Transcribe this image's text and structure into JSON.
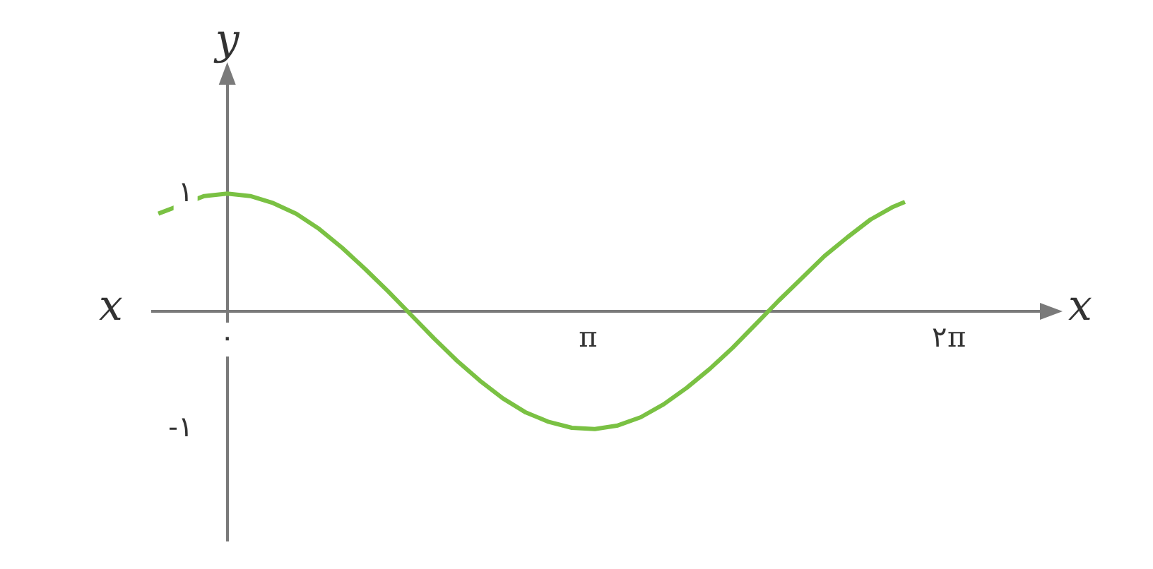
{
  "chart_data": {
    "type": "line",
    "xlabel": "x",
    "ylabel": "y",
    "annotations": [
      "x"
    ],
    "xlim": [
      -0.65,
      7.1
    ],
    "ylim": [
      -1.95,
      1.95
    ],
    "xticks": [
      {
        "value": 0,
        "label": "۰"
      },
      {
        "value": 3.1416,
        "label": "π"
      },
      {
        "value": 6.2832,
        "label": "۲π"
      }
    ],
    "yticks": [
      {
        "value": -1,
        "label": "-۱"
      },
      {
        "value": 1,
        "label": "۱"
      }
    ],
    "grid": false,
    "marker": "none",
    "line_style": "solid",
    "series": [
      {
        "color": "#7ac143",
        "x": [
          -0.6,
          -0.2,
          0,
          0.2,
          0.4,
          0.6,
          0.8,
          1.0,
          1.2,
          1.4,
          1.6,
          1.8,
          2.0,
          2.2,
          2.4,
          2.6,
          2.8,
          3.0,
          3.2,
          3.4,
          3.6,
          3.8,
          4.0,
          4.2,
          4.4,
          4.6,
          4.8,
          5.0,
          5.2,
          5.4,
          5.6,
          5.8,
          5.9
        ],
        "values": [
          0.83,
          0.98,
          1,
          0.98,
          0.92,
          0.83,
          0.7,
          0.54,
          0.36,
          0.17,
          -0.03,
          -0.23,
          -0.42,
          -0.59,
          -0.74,
          -0.86,
          -0.94,
          -0.99,
          -1,
          -0.97,
          -0.9,
          -0.79,
          -0.65,
          -0.49,
          -0.31,
          -0.11,
          0.09,
          0.28,
          0.47,
          0.63,
          0.78,
          0.89,
          0.93
        ]
      }
    ]
  }
}
